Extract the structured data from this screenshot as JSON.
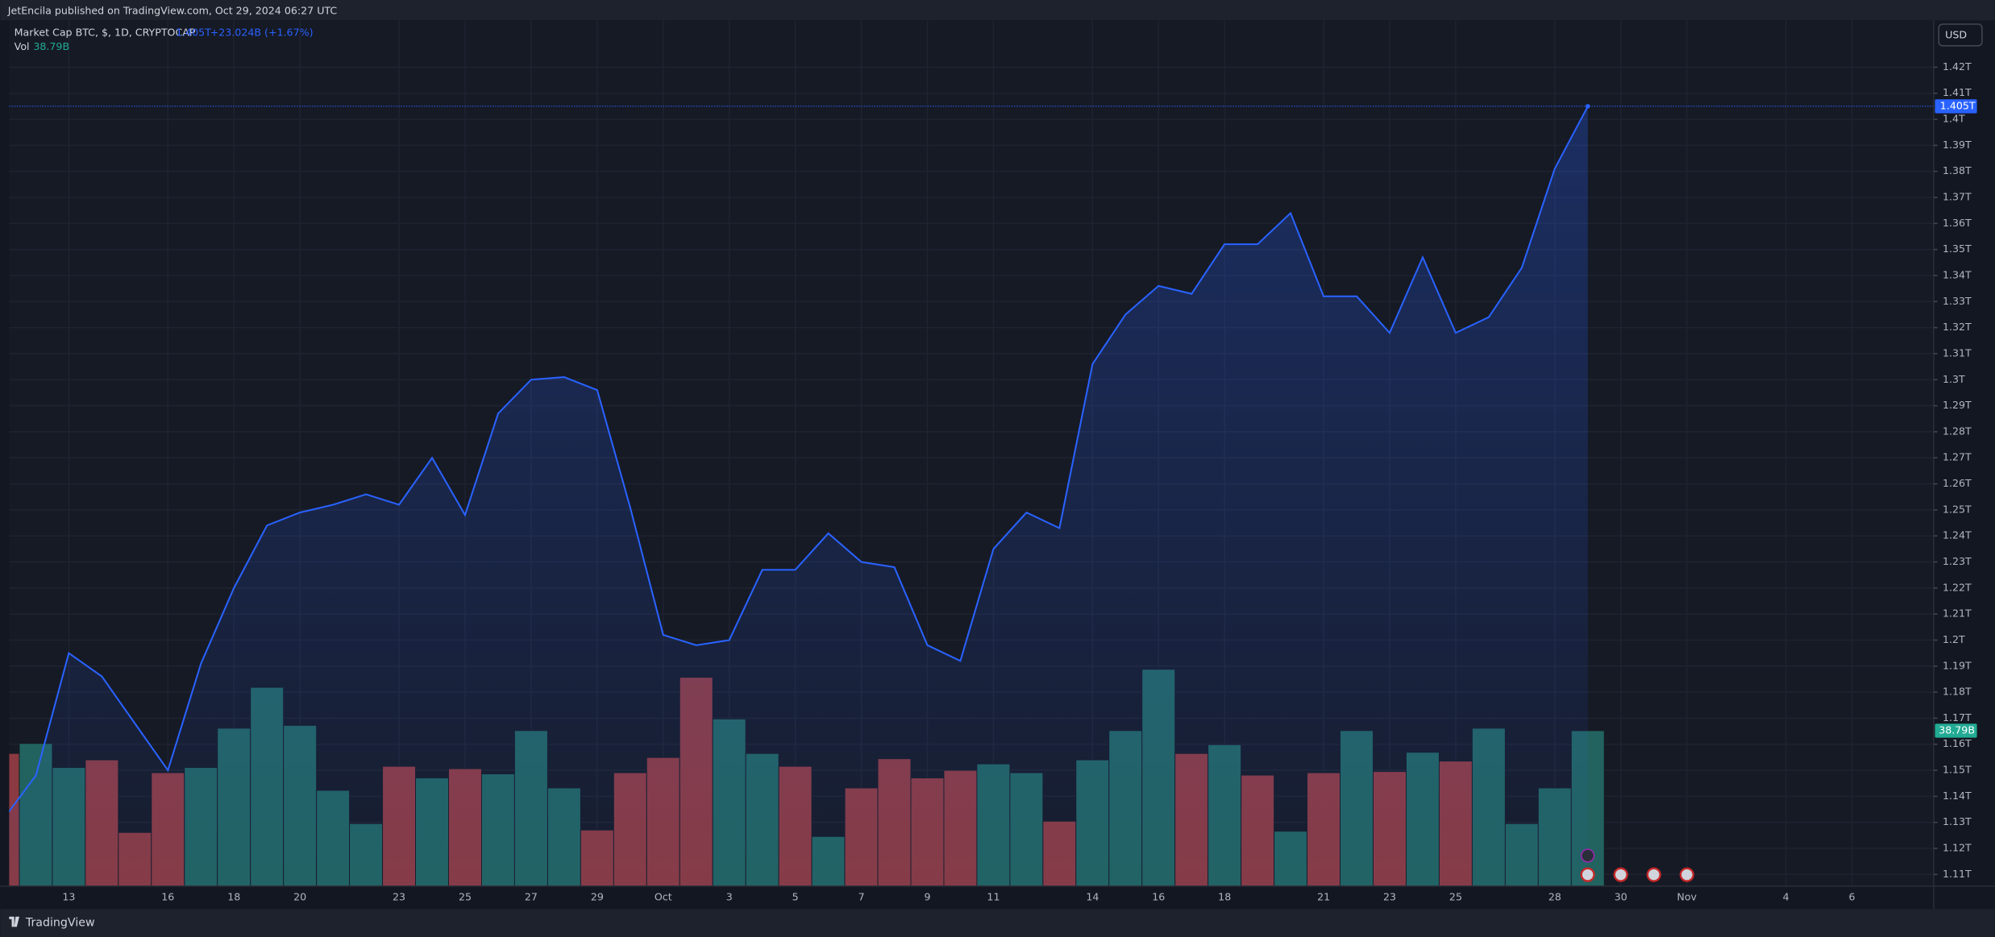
{
  "publisher": "JetEncila published on TradingView.com, Oct 29, 2024 06:27 UTC",
  "brand": "TradingView",
  "chart_data": {
    "type": "line",
    "title": "Market Cap BTC, $, 1D, CRYPTOCAP",
    "last_value_label": "1.405T",
    "change_label": "+23.024B (+1.67%)",
    "currency": "USD",
    "grid": true,
    "categories": [
      null,
      null,
      "13",
      null,
      null,
      "16",
      null,
      "18",
      null,
      "20",
      null,
      null,
      "23",
      null,
      "25",
      null,
      "27",
      null,
      "29",
      null,
      "Oct",
      null,
      "3",
      null,
      "5",
      null,
      "7",
      null,
      "9",
      null,
      "11",
      null,
      null,
      "14",
      null,
      "16",
      null,
      "18",
      null,
      null,
      "21",
      null,
      "23",
      null,
      "25",
      null,
      null,
      "28",
      null,
      "30",
      null,
      "Nov",
      null,
      null,
      "4",
      null,
      "6",
      null,
      null
    ],
    "series": [
      {
        "color": "#2962ff",
        "values": [
          1.131,
          1.148,
          1.195,
          1.186,
          1.168,
          1.15,
          1.191,
          1.22,
          1.244,
          1.249,
          1.252,
          1.256,
          1.252,
          1.27,
          1.248,
          1.287,
          1.3,
          1.301,
          1.296,
          1.251,
          1.202,
          1.198,
          1.2,
          1.227,
          1.227,
          1.241,
          1.23,
          1.228,
          1.198,
          1.192,
          1.235,
          1.249,
          1.243,
          1.306,
          1.325,
          1.336,
          1.333,
          1.352,
          1.352,
          1.364,
          1.332,
          1.332,
          1.318,
          1.347,
          1.318,
          1.324,
          1.343,
          1.381,
          1.405,
          null,
          null,
          null,
          null,
          null,
          null,
          null,
          null,
          null,
          null
        ]
      }
    ],
    "ylim": [
      1.1055,
      1.438
    ],
    "yticks": [
      {
        "value": 1.11,
        "label": "1.11T"
      },
      {
        "value": 1.12,
        "label": "1.12T"
      },
      {
        "value": 1.13,
        "label": "1.13T"
      },
      {
        "value": 1.14,
        "label": "1.14T"
      },
      {
        "value": 1.15,
        "label": "1.15T"
      },
      {
        "value": 1.16,
        "label": "1.16T"
      },
      {
        "value": 1.17,
        "label": "1.17T"
      },
      {
        "value": 1.18,
        "label": "1.18T"
      },
      {
        "value": 1.19,
        "label": "1.19T"
      },
      {
        "value": 1.2,
        "label": "1.2T"
      },
      {
        "value": 1.21,
        "label": "1.21T"
      },
      {
        "value": 1.22,
        "label": "1.22T"
      },
      {
        "value": 1.23,
        "label": "1.23T"
      },
      {
        "value": 1.24,
        "label": "1.24T"
      },
      {
        "value": 1.25,
        "label": "1.25T"
      },
      {
        "value": 1.26,
        "label": "1.26T"
      },
      {
        "value": 1.27,
        "label": "1.27T"
      },
      {
        "value": 1.28,
        "label": "1.28T"
      },
      {
        "value": 1.29,
        "label": "1.29T"
      },
      {
        "value": 1.3,
        "label": "1.3T"
      },
      {
        "value": 1.31,
        "label": "1.31T"
      },
      {
        "value": 1.32,
        "label": "1.32T"
      },
      {
        "value": 1.33,
        "label": "1.33T"
      },
      {
        "value": 1.34,
        "label": "1.34T"
      },
      {
        "value": 1.35,
        "label": "1.35T"
      },
      {
        "value": 1.36,
        "label": "1.36T"
      },
      {
        "value": 1.37,
        "label": "1.37T"
      },
      {
        "value": 1.38,
        "label": "1.38T"
      },
      {
        "value": 1.39,
        "label": "1.39T"
      },
      {
        "value": 1.4,
        "label": "1.4T"
      },
      {
        "value": 1.41,
        "label": "1.41T"
      },
      {
        "value": 1.42,
        "label": "1.42T"
      }
    ],
    "volume": {
      "name": "Vol",
      "value_label": "38.79B",
      "values": [
        33.1,
        35.6,
        29.6,
        31.5,
        13.4,
        28.3,
        29.6,
        39.4,
        49.6,
        40.1,
        23.9,
        15.6,
        29.9,
        27.0,
        29.3,
        28.0,
        38.8,
        24.5,
        14.0,
        28.3,
        32.1,
        52.1,
        41.7,
        33.1,
        29.9,
        12.4,
        24.5,
        31.8,
        27.0,
        28.9,
        30.5,
        28.3,
        16.2,
        31.5,
        38.8,
        54.1,
        33.1,
        35.3,
        27.7,
        13.7,
        28.3,
        38.8,
        28.6,
        33.4,
        31.2,
        39.4,
        15.6,
        24.5,
        38.79,
        null,
        null,
        null,
        null,
        null,
        null,
        null,
        null,
        null,
        null
      ],
      "colors": [
        "#8a3a40",
        "#22635f",
        "#22635f",
        "#8a3a40",
        "#8a3a40",
        "#8a3a40",
        "#22635f",
        "#22635f",
        "#22635f",
        "#22635f",
        "#22635f",
        "#22635f",
        "#8a3a40",
        "#22635f",
        "#8a3a40",
        "#22635f",
        "#22635f",
        "#22635f",
        "#8a3a40",
        "#8a3a40",
        "#8a3a40",
        "#8a3a40",
        "#22635f",
        "#22635f",
        "#8a3a40",
        "#22635f",
        "#8a3a40",
        "#8a3a40",
        "#8a3a40",
        "#8a3a40",
        "#22635f",
        "#22635f",
        "#8a3a40",
        "#22635f",
        "#22635f",
        "#22635f",
        "#8a3a40",
        "#22635f",
        "#8a3a40",
        "#22635f",
        "#8a3a40",
        "#22635f",
        "#8a3a40",
        "#22635f",
        "#8a3a40",
        "#22635f",
        "#22635f",
        "#22635f",
        "#22635f",
        null,
        null,
        null,
        null,
        null,
        null,
        null,
        null,
        null,
        null
      ],
      "ylim": [
        0,
        216
      ]
    }
  }
}
